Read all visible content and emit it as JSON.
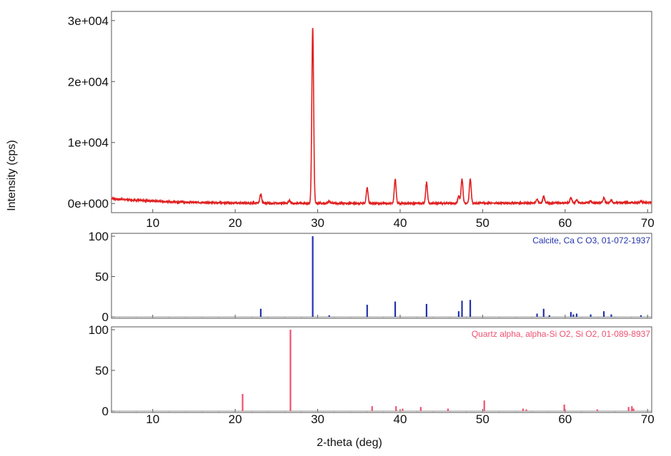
{
  "ylabel": "Intensity (cps)",
  "xlabel": "2-theta (deg)",
  "chart_data": [
    {
      "type": "line",
      "panel": "measured pattern",
      "color": "#e02020",
      "xlim": [
        5,
        70.5
      ],
      "ylim": [
        -1500,
        31500
      ],
      "yticks": [
        0,
        10000,
        20000,
        30000
      ],
      "ytick_labels": [
        "0e+000",
        "1e+004",
        "2e+004",
        "3e+004"
      ],
      "xticks": [
        10,
        20,
        30,
        40,
        50,
        60,
        70
      ],
      "xtick_labels": [
        "10",
        "20",
        "30",
        "40",
        "50",
        "60",
        "70"
      ],
      "baseline": [
        [
          5,
          800
        ],
        [
          8,
          550
        ],
        [
          12,
          300
        ],
        [
          16,
          150
        ],
        [
          20,
          80
        ],
        [
          25,
          50
        ],
        [
          35,
          30
        ],
        [
          45,
          30
        ],
        [
          55,
          80
        ],
        [
          65,
          120
        ],
        [
          70.5,
          150
        ]
      ],
      "peaks": [
        {
          "x": 23.1,
          "y": 1500
        },
        {
          "x": 26.6,
          "y": 400
        },
        {
          "x": 29.4,
          "y": 28800
        },
        {
          "x": 31.4,
          "y": 400
        },
        {
          "x": 36.0,
          "y": 2500
        },
        {
          "x": 39.4,
          "y": 4000
        },
        {
          "x": 43.2,
          "y": 3400
        },
        {
          "x": 47.1,
          "y": 1200
        },
        {
          "x": 47.5,
          "y": 4000
        },
        {
          "x": 48.5,
          "y": 4000
        },
        {
          "x": 56.6,
          "y": 600
        },
        {
          "x": 57.4,
          "y": 1100
        },
        {
          "x": 60.7,
          "y": 900
        },
        {
          "x": 61.4,
          "y": 500
        },
        {
          "x": 63.1,
          "y": 300
        },
        {
          "x": 64.7,
          "y": 800
        },
        {
          "x": 65.6,
          "y": 450
        },
        {
          "x": 69.2,
          "y": 250
        }
      ]
    },
    {
      "type": "bar",
      "panel": "reference pattern",
      "label": "Calcite, Ca C O3, 01-072-1937",
      "color": "#2233aa",
      "xlim": [
        5,
        70.5
      ],
      "ylim": [
        0,
        100
      ],
      "yticks": [
        0,
        50,
        100
      ],
      "ytick_labels": [
        "0",
        "50",
        "100"
      ],
      "xticks": [
        10,
        20,
        30,
        40,
        50,
        60,
        70
      ],
      "xtick_labels": [
        "10",
        "20",
        "30",
        "40",
        "50",
        "60",
        "70"
      ],
      "x": [
        23.1,
        29.4,
        31.4,
        36.0,
        39.4,
        43.2,
        47.1,
        47.5,
        48.5,
        56.6,
        57.4,
        58.1,
        60.7,
        61.0,
        61.4,
        63.1,
        64.7,
        65.6,
        69.2
      ],
      "values": [
        10,
        100,
        2,
        15,
        19,
        16,
        7,
        20,
        21,
        4,
        10,
        2,
        6,
        3,
        4,
        3,
        7,
        3,
        2
      ]
    },
    {
      "type": "bar",
      "panel": "reference pattern",
      "label": "Quartz alpha, alpha-Si O2, Si O2, 01-089-8937",
      "color": "#f05070",
      "xlim": [
        5,
        70.5
      ],
      "ylim": [
        0,
        100
      ],
      "yticks": [
        0,
        50,
        100
      ],
      "ytick_labels": [
        "0",
        "50",
        "100"
      ],
      "xticks": [
        10,
        20,
        30,
        40,
        50,
        60,
        70
      ],
      "xtick_labels": [
        "10",
        "20",
        "30",
        "40",
        "50",
        "60",
        "70"
      ],
      "x": [
        20.9,
        26.7,
        36.6,
        39.5,
        40.3,
        42.5,
        45.8,
        50.2,
        54.9,
        55.3,
        59.9,
        63.9,
        67.7,
        68.1,
        68.3
      ],
      "values": [
        21,
        100,
        6,
        6,
        3,
        5,
        3,
        13,
        3,
        2,
        8,
        2,
        5,
        6,
        3
      ]
    }
  ]
}
